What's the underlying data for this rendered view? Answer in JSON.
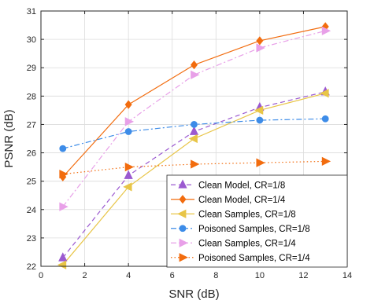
{
  "chart_data": {
    "type": "line",
    "xlabel": "SNR (dB)",
    "ylabel": "PSNR (dB)",
    "xlim": [
      0,
      14
    ],
    "ylim": [
      22,
      31
    ],
    "xticks": [
      0,
      2,
      4,
      6,
      8,
      10,
      12,
      14
    ],
    "yticks": [
      22,
      23,
      24,
      25,
      26,
      27,
      28,
      29,
      30,
      31
    ],
    "grid": true,
    "legend_position": "lower-right",
    "x": [
      1,
      4,
      7,
      10,
      13
    ],
    "series": [
      {
        "name": "Clean Model, CR=1/8",
        "values": [
          22.3,
          25.2,
          26.75,
          27.6,
          28.15
        ],
        "color": "#9b59d0",
        "linestyle": "dashed",
        "marker": "triangle-up"
      },
      {
        "name": "Clean Model, CR=1/4",
        "values": [
          25.15,
          27.7,
          29.1,
          29.95,
          30.45
        ],
        "color": "#f26c0e",
        "linestyle": "solid",
        "marker": "diamond"
      },
      {
        "name": "Clean Samples, CR=1/8",
        "values": [
          22.05,
          24.8,
          26.5,
          27.5,
          28.1
        ],
        "color": "#e8c547",
        "linestyle": "solid",
        "marker": "triangle-left"
      },
      {
        "name": "Poisoned Samples, CR=1/8",
        "values": [
          26.15,
          26.75,
          27.0,
          27.15,
          27.2
        ],
        "color": "#3d8ce8",
        "linestyle": "dashdot",
        "marker": "circle"
      },
      {
        "name": "Clean Samples, CR=1/4",
        "values": [
          24.1,
          27.1,
          28.75,
          29.7,
          30.3
        ],
        "color": "#e8a0e8",
        "linestyle": "dashdot",
        "marker": "triangle-right"
      },
      {
        "name": "Poisoned Samples, CR=1/4",
        "values": [
          25.25,
          25.5,
          25.6,
          25.65,
          25.7
        ],
        "color": "#f26c0e",
        "linestyle": "dotted",
        "marker": "triangle-right"
      }
    ]
  }
}
